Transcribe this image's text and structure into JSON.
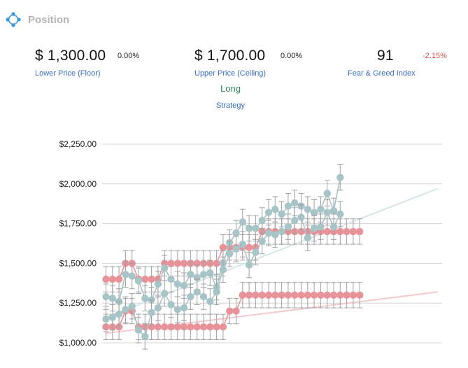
{
  "header": {
    "title": "Position",
    "icon": "cluster-logo-icon",
    "accent": "#3a9ad9"
  },
  "metrics": {
    "floor": {
      "value": "$ 1,300.00",
      "change": "0.00%",
      "label": "Lower Price (Floor)"
    },
    "ceiling": {
      "value": "$ 1,700.00",
      "change": "0.00%",
      "label": "Upper Price (Ceiling)"
    },
    "fear_greed": {
      "value": "91",
      "change": "-2.15%",
      "label": "Fear & Greed Index",
      "change_color": "#d9534f"
    },
    "strategy": {
      "value": "Long",
      "label": "Strategy",
      "value_color": "#2e8b57"
    }
  },
  "chart_data": {
    "type": "line",
    "title": "",
    "xlabel": "",
    "ylabel": "",
    "ylim": [
      1000,
      2250
    ],
    "yticks": [
      "$1,000.00",
      "$1,250.00",
      "$1,500.00",
      "$1,750.00",
      "$2,000.00",
      "$2,250.00"
    ],
    "grid": true,
    "error_bar": 80,
    "series": [
      {
        "name": "",
        "color": "#e8939a",
        "values": [
          1400,
          1400,
          1400,
          1500,
          1500,
          1400,
          1400,
          1400,
          1400,
          1500,
          1500,
          1500,
          1500,
          1500,
          1500,
          1500,
          1500,
          1500,
          1600,
          1600,
          1600,
          1600,
          1600,
          1600,
          1700,
          1700,
          1700,
          1700,
          1700,
          1700,
          1700,
          1700,
          1700,
          1700,
          1700,
          1700,
          1700,
          1700,
          1700,
          1700
        ]
      },
      {
        "name": "",
        "color": "#e8939a",
        "values": [
          1100,
          1100,
          1100,
          1200,
          1200,
          1100,
          1100,
          1100,
          1100,
          1100,
          1100,
          1100,
          1100,
          1100,
          1100,
          1100,
          1100,
          1100,
          1100,
          1200,
          1200,
          1300,
          1300,
          1300,
          1300,
          1300,
          1300,
          1300,
          1300,
          1300,
          1300,
          1300,
          1300,
          1300,
          1300,
          1300,
          1300,
          1300,
          1300,
          1300
        ]
      },
      {
        "name": "",
        "color": "#a7c4c6",
        "values": [
          1290,
          1280,
          1260,
          1430,
          1420,
          1390,
          1280,
          1270,
          1370,
          1470,
          1400,
          1370,
          1360,
          1430,
          1410,
          1430,
          1440,
          1350,
          1500,
          1630,
          1690,
          1760,
          1720,
          1720,
          1770,
          1820,
          1840,
          1810,
          1860,
          1880,
          1860,
          1840,
          1820,
          1840,
          1940,
          1830,
          2040
        ]
      },
      {
        "name": "",
        "color": "#a7c4c6",
        "values": [
          1150,
          1160,
          1180,
          1210,
          1230,
          1080,
          1040,
          1190,
          1220,
          1310,
          1240,
          1210,
          1220,
          1290,
          1320,
          1290,
          1260,
          1320,
          1460,
          1560,
          1590,
          1620,
          1490,
          1570,
          1640,
          1690,
          1680,
          1700,
          1730,
          1770,
          1790,
          1660,
          1720,
          1730,
          1820,
          1730,
          1810
        ]
      }
    ],
    "trend_lines": [
      {
        "name": "",
        "color": "#f4c9cc",
        "from": 1060,
        "to": 1320
      },
      {
        "name": "",
        "color": "#d6e6e7",
        "from": 1160,
        "to": 1970
      }
    ]
  }
}
